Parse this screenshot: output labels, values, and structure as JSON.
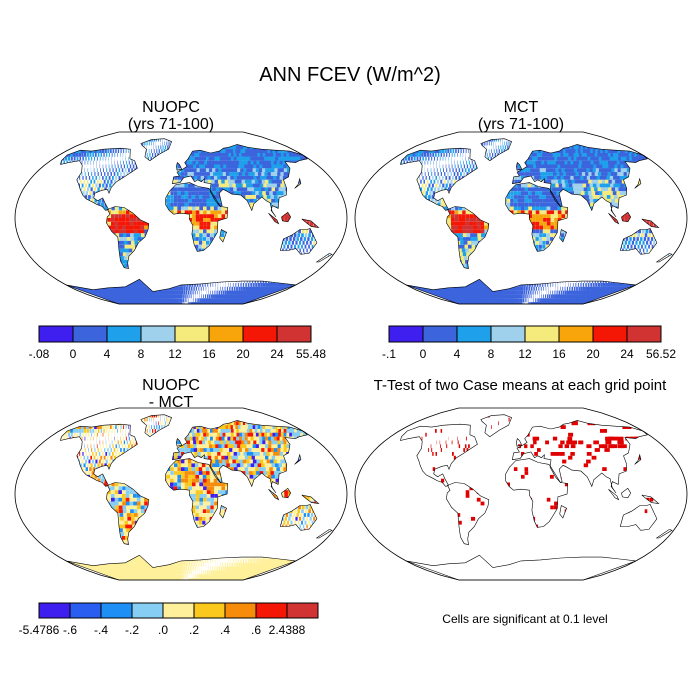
{
  "figure": {
    "title": "ANN FCEV (W/m^2)"
  },
  "panels": [
    {
      "id": "nuopc",
      "title_line1": "NUOPC",
      "title_line2": "(yrs 71-100)",
      "map_type": "field",
      "colorbar": {
        "colors": [
          "#3f1ff0",
          "#3c64dc",
          "#1ea0eb",
          "#a0d1ec",
          "#f5eb7d",
          "#f7a50a",
          "#f51705",
          "#d13232"
        ],
        "labels": [
          "-.08",
          "0",
          "4",
          "8",
          "12",
          "16",
          "20",
          "24",
          "55.48"
        ]
      }
    },
    {
      "id": "mct",
      "title_line1": "MCT",
      "title_line2": "(yrs 71-100)",
      "map_type": "field",
      "colorbar": {
        "colors": [
          "#3f1ff0",
          "#3c64dc",
          "#1ea0eb",
          "#a0d1ec",
          "#f5eb7d",
          "#f7a50a",
          "#f51705",
          "#d13232"
        ],
        "labels": [
          "-.1",
          "0",
          "4",
          "8",
          "12",
          "16",
          "20",
          "24",
          "56.52"
        ]
      }
    },
    {
      "id": "diff",
      "title_line1": "NUOPC",
      "title_line2": "- MCT",
      "map_type": "difference",
      "colorbar": {
        "colors": [
          "#3f1ff0",
          "#2a5ef0",
          "#1e90f5",
          "#87cef5",
          "#fff09b",
          "#fbc81e",
          "#f78c0a",
          "#f51705",
          "#d13232"
        ],
        "labels": [
          "-5.4786",
          "-.6",
          "-.4",
          "-.2",
          ".0",
          ".2",
          ".4",
          ".6",
          "2.4388"
        ]
      }
    },
    {
      "id": "ttest",
      "title_line1": "T-Test of two Case means at each grid point",
      "title_line2": "",
      "map_type": "significance",
      "note": "Cells are significant at 0.1 level"
    }
  ]
}
